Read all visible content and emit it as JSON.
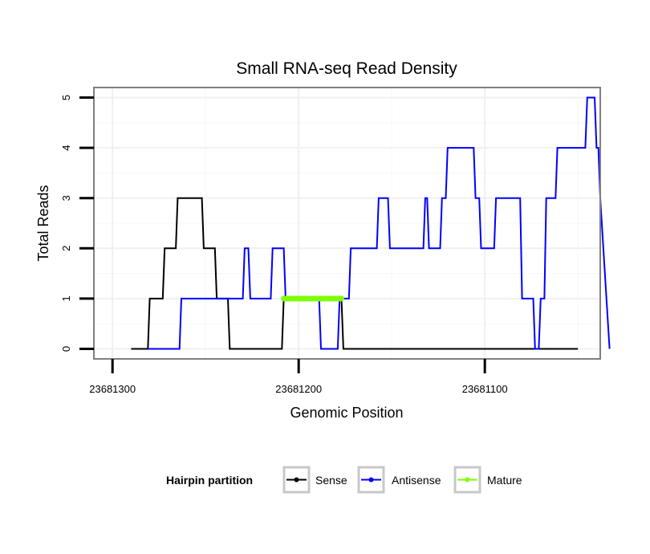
{
  "chart_data": {
    "type": "line",
    "title": "Small RNA-seq Read Density",
    "xlabel": "Genomic Position",
    "ylabel": "Total Reads",
    "xlim": [
      23681310,
      23681038
    ],
    "ylim": [
      -0.2,
      5.2
    ],
    "x_reversed": true,
    "x_ticks": [
      23681300,
      23681200,
      23681100
    ],
    "x_tick_labels": [
      "23681300",
      "23681200",
      "23681100"
    ],
    "y_ticks": [
      0,
      1,
      2,
      3,
      4,
      5
    ],
    "y_tick_labels": [
      "0",
      "1",
      "2",
      "3",
      "4",
      "5"
    ],
    "grid": true,
    "legend": {
      "title": "Hairpin partition",
      "position": "bottom",
      "entries": [
        "Sense",
        "Antisense",
        "Mature"
      ]
    },
    "series": [
      {
        "name": "Sense",
        "color": "#000000",
        "style": "line",
        "x": [
          23681290,
          23681281,
          23681280,
          23681273,
          23681272,
          23681270,
          23681269,
          23681266,
          23681265,
          23681252,
          23681251,
          23681245,
          23681244,
          23681242,
          23681241,
          23681238,
          23681237,
          23681209,
          23681208,
          23681202,
          23681201,
          23681177,
          23681176,
          23681112,
          23681111,
          23681050
        ],
        "y": [
          0,
          0,
          1,
          1,
          2,
          2,
          2,
          2,
          3,
          3,
          2,
          2,
          1,
          1,
          1,
          1,
          0,
          0,
          1,
          1,
          1,
          1,
          0,
          0,
          0,
          0
        ]
      },
      {
        "name": "Antisense",
        "color": "#0000ff",
        "style": "line",
        "x": [
          23681281,
          23681264,
          23681263,
          23681252,
          23681251,
          23681242,
          23681241,
          23681230,
          23681229,
          23681227,
          23681226,
          23681223,
          23681222,
          23681215,
          23681214,
          23681208,
          23681207,
          23681194,
          23681193,
          23681189,
          23681188,
          23681179,
          23681178,
          23681173,
          23681172,
          23681160,
          23681159,
          23681158,
          23681157,
          23681152,
          23681151,
          23681133,
          23681132,
          23681131,
          23681130,
          23681124,
          23681123,
          23681121,
          23681120,
          23681106,
          23681105,
          23681103,
          23681102,
          23681095,
          23681094,
          23681093,
          23681092,
          23681081,
          23681080,
          23681074,
          23681073,
          23681071,
          23681070,
          23681068,
          23681067,
          23681062,
          23681061,
          23681046,
          23681045,
          23681041,
          23681040,
          23681039,
          23681038,
          23681033
        ],
        "y": [
          0,
          0,
          1,
          1,
          1,
          1,
          1,
          1,
          2,
          2,
          1,
          1,
          1,
          1,
          2,
          2,
          1,
          1,
          1,
          1,
          0,
          0,
          1,
          1,
          2,
          2,
          2,
          2,
          3,
          3,
          2,
          2,
          3,
          3,
          2,
          2,
          3,
          3,
          4,
          4,
          3,
          3,
          2,
          2,
          3,
          3,
          3,
          3,
          1,
          1,
          0,
          0,
          1,
          1,
          3,
          3,
          4,
          4,
          5,
          5,
          4,
          4,
          3,
          0
        ]
      },
      {
        "name": "Mature",
        "color": "#7fff00",
        "style": "line+points",
        "x": [
          23681208,
          23681207,
          23681206,
          23681205,
          23681204,
          23681203,
          23681202,
          23681201,
          23681200,
          23681199,
          23681198,
          23681197,
          23681196,
          23681195,
          23681194,
          23681193,
          23681192,
          23681191,
          23681190,
          23681189,
          23681188,
          23681187,
          23681186,
          23681185,
          23681184,
          23681183,
          23681182,
          23681181,
          23681180,
          23681179,
          23681178,
          23681177
        ],
        "y": [
          1,
          1,
          1,
          1,
          1,
          1,
          1,
          1,
          1,
          1,
          1,
          1,
          1,
          1,
          1,
          1,
          1,
          1,
          1,
          1,
          1,
          1,
          1,
          1,
          1,
          1,
          1,
          1,
          1,
          1,
          1,
          1
        ]
      }
    ]
  }
}
